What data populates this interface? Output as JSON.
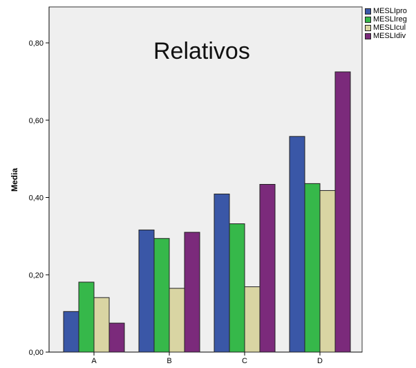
{
  "chart_data": {
    "type": "bar",
    "title": "Relativos",
    "ylabel": "Media",
    "xlabel": "",
    "categories": [
      "A",
      "B",
      "C",
      "D"
    ],
    "series": [
      {
        "name": "MESLIpro",
        "color": "#3a57a7",
        "values": [
          0.105,
          0.316,
          0.409,
          0.558
        ]
      },
      {
        "name": "MESLIreg",
        "color": "#36b84a",
        "values": [
          0.181,
          0.294,
          0.332,
          0.436
        ]
      },
      {
        "name": "MESLIcul",
        "color": "#d9d5a3",
        "values": [
          0.141,
          0.165,
          0.169,
          0.418
        ]
      },
      {
        "name": "MESLIdiv",
        "color": "#7b2a7b",
        "values": [
          0.075,
          0.31,
          0.434,
          0.725
        ]
      }
    ],
    "ylim": [
      0,
      0.8
    ],
    "yticks": [
      "0,00",
      "0,20",
      "0,40",
      "0,60",
      "0,80"
    ],
    "ytick_values": [
      0,
      0.2,
      0.4,
      0.6,
      0.8
    ],
    "legend_position": "top-right",
    "grid": false,
    "plot_background": "#efefef"
  }
}
